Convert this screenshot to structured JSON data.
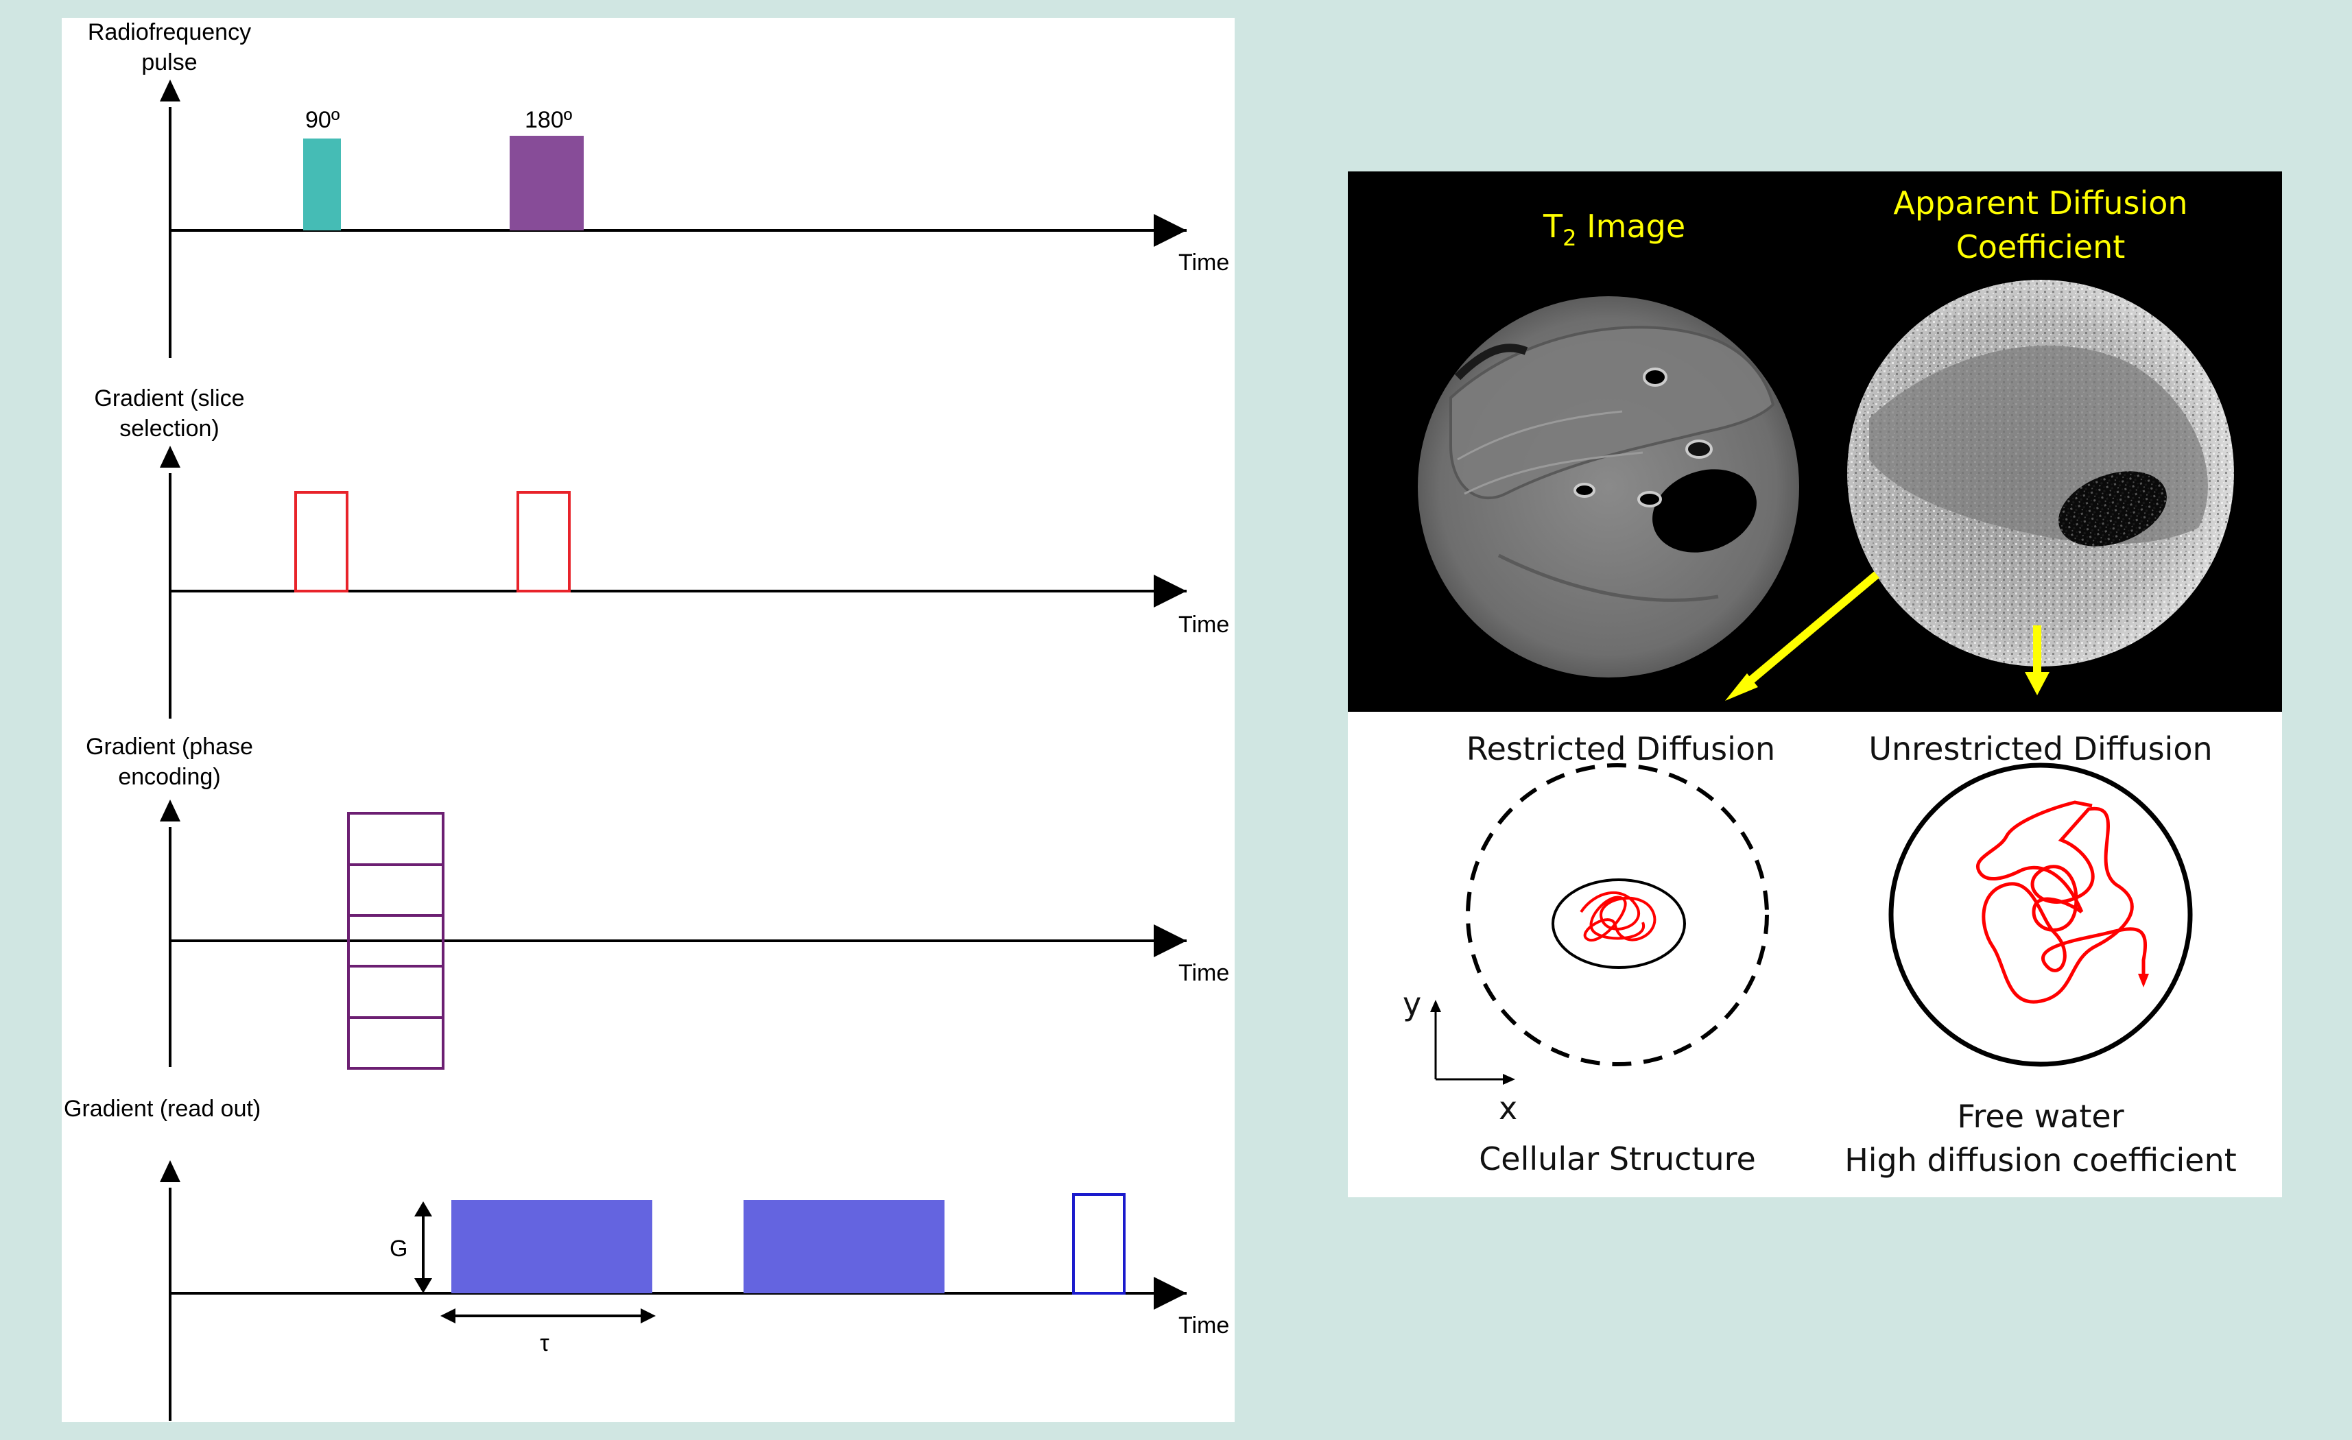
{
  "sequence": {
    "rf_label_line1": "Radiofrequency",
    "rf_label_line2": "pulse",
    "pulse_90": "90º",
    "pulse_180": "180º",
    "slice_label_line1": "Gradient (slice",
    "slice_label_line2": "selection)",
    "phase_label_line1": "Gradient (phase",
    "phase_label_line2": "encoding)",
    "readout_label": "Gradient (read out)",
    "time_label": "Time",
    "g_label": "G",
    "tau_label": "τ"
  },
  "mri": {
    "t2_title_main": "T",
    "t2_title_sub": "2",
    "t2_title_rest": " Image",
    "adc_title_line1": "Apparent Diffusion",
    "adc_title_line2": "Coefficient"
  },
  "diffusion": {
    "restricted_title": "Restricted Diffusion",
    "unrestricted_title": "Unrestricted Diffusion",
    "axis_y": "y",
    "axis_x": "x",
    "restricted_caption": "Cellular Structure",
    "unrestricted_caption_line1": "Free water",
    "unrestricted_caption_line2": "High diffusion coefficient"
  },
  "colors": {
    "pulse_90": "#45bcb5",
    "pulse_180": "#874c98",
    "slice_gradient": "#e8232a",
    "phase_gradient": "#6c1f72",
    "readout_fill": "#6464e0",
    "readout_outline": "#1a1acc",
    "highlight": "#ffff00",
    "walk": "#ff0000"
  }
}
